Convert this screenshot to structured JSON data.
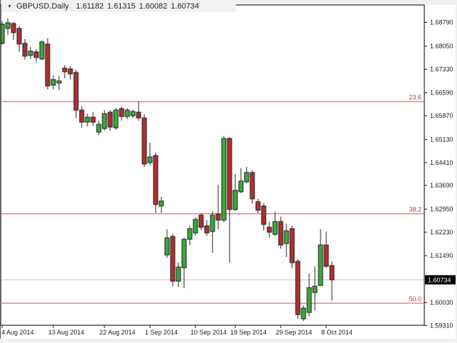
{
  "window": {
    "collapse_icon": "▼",
    "symbol_period": "GBPUSD,Daily",
    "ohlc": {
      "open": "1.61182",
      "high": "1.61315",
      "low": "1.60082",
      "close": "1.60734"
    }
  },
  "colors": {
    "up_fill": "#3aa83a",
    "down_fill": "#b03030",
    "outline": "#202020",
    "wick": "#202020",
    "fib_line": "#d84848",
    "fib_label": "#cc3333",
    "current_price_line": "#c0c0c0",
    "axis_text": "#1a1a1a",
    "plot_bg": "#ffffff",
    "frame": "#000000",
    "window_bg": "#f0f0f0",
    "badge_bg": "#000000",
    "badge_text": "#ffffff"
  },
  "chart_data": {
    "type": "candlestick",
    "title": "GBPUSD, Daily",
    "symbol": "GBPUSD",
    "timeframe": "Daily",
    "grid": false,
    "legend": false,
    "current_price": "1.60734",
    "y_axis": {
      "side": "right",
      "visible_range": [
        1.592,
        1.6895
      ],
      "tick_labels": [
        "1.68790",
        "1.68050",
        "1.67330",
        "1.66590",
        "1.65870",
        "1.65130",
        "1.64410",
        "1.63690",
        "1.62950",
        "1.62230",
        "1.61490",
        "1.60030",
        "1.59310"
      ]
    },
    "x_axis": {
      "side": "bottom",
      "date_ticks": [
        {
          "label": "4 Aug 2014",
          "bar": 0
        },
        {
          "label": "13 Aug 2014",
          "bar": 9
        },
        {
          "label": "22 Aug 2014",
          "bar": 18
        },
        {
          "label": "1 Sep 2014",
          "bar": 26
        },
        {
          "label": "10 Sep 2014",
          "bar": 34
        },
        {
          "label": "19 Sep 2014",
          "bar": 41
        },
        {
          "label": "29 Sep 2014",
          "bar": 49
        },
        {
          "label": "8 Oct 2014",
          "bar": 57
        }
      ]
    },
    "fib_levels": [
      {
        "label": "23.6",
        "price": 1.6632
      },
      {
        "label": "38.2",
        "price": 1.6281
      },
      {
        "label": "50.0",
        "price": 1.6001
      }
    ],
    "candle_format": [
      "open",
      "high",
      "low",
      "close"
    ],
    "candles": [
      [
        1.6814,
        1.6883,
        1.6809,
        1.6874
      ],
      [
        1.6861,
        1.6892,
        1.6841,
        1.6878
      ],
      [
        1.6876,
        1.6881,
        1.6825,
        1.6847
      ],
      [
        1.6861,
        1.6867,
        1.6787,
        1.6812
      ],
      [
        1.6814,
        1.6827,
        1.6763,
        1.6774
      ],
      [
        1.6776,
        1.6803,
        1.6765,
        1.6789
      ],
      [
        1.6787,
        1.6796,
        1.6754,
        1.6769
      ],
      [
        1.6765,
        1.6823,
        1.6761,
        1.6818
      ],
      [
        1.6812,
        1.6829,
        1.6669,
        1.6681
      ],
      [
        1.6683,
        1.6714,
        1.6669,
        1.67
      ],
      [
        1.6689,
        1.6712,
        1.6667,
        1.6696
      ],
      [
        1.6736,
        1.6745,
        1.6705,
        1.6725
      ],
      [
        1.6734,
        1.6743,
        1.67,
        1.6718
      ],
      [
        1.6723,
        1.6732,
        1.6581,
        1.6605
      ],
      [
        1.6605,
        1.6616,
        1.6549,
        1.6567
      ],
      [
        1.6567,
        1.6594,
        1.6554,
        1.6583
      ],
      [
        1.6583,
        1.6598,
        1.6556,
        1.6567
      ],
      [
        1.6536,
        1.6572,
        1.6527,
        1.6561
      ],
      [
        1.6547,
        1.6605,
        1.6541,
        1.6594
      ],
      [
        1.6598,
        1.6605,
        1.6541,
        1.6552
      ],
      [
        1.6549,
        1.6612,
        1.6543,
        1.6605
      ],
      [
        1.6609,
        1.6616,
        1.6572,
        1.6585
      ],
      [
        1.6585,
        1.6612,
        1.6576,
        1.6605
      ],
      [
        1.6587,
        1.6607,
        1.6581,
        1.6601
      ],
      [
        1.6598,
        1.6632,
        1.6572,
        1.6581
      ],
      [
        1.6581,
        1.6592,
        1.6427,
        1.6436
      ],
      [
        1.6441,
        1.6503,
        1.6434,
        1.6458
      ],
      [
        1.6463,
        1.6472,
        1.6283,
        1.6309
      ],
      [
        1.6305,
        1.6334,
        1.6283,
        1.6321
      ],
      [
        1.6152,
        1.6232,
        1.6143,
        1.6205
      ],
      [
        1.6209,
        1.6216,
        1.6054,
        1.6069
      ],
      [
        1.6069,
        1.6127,
        1.6052,
        1.6114
      ],
      [
        1.6112,
        1.6205,
        1.6047,
        1.6201
      ],
      [
        1.6201,
        1.6243,
        1.6183,
        1.6234
      ],
      [
        1.6221,
        1.6269,
        1.6212,
        1.6263
      ],
      [
        1.6276,
        1.6283,
        1.6229,
        1.6238
      ],
      [
        1.6243,
        1.6261,
        1.6212,
        1.6221
      ],
      [
        1.6225,
        1.6287,
        1.6158,
        1.6276
      ],
      [
        1.6281,
        1.6372,
        1.6232,
        1.6261
      ],
      [
        1.6261,
        1.6523,
        1.6254,
        1.6516
      ],
      [
        1.6516,
        1.6521,
        1.6127,
        1.6294
      ],
      [
        1.6294,
        1.6405,
        1.6289,
        1.6354
      ],
      [
        1.6349,
        1.6423,
        1.6345,
        1.6383
      ],
      [
        1.6381,
        1.6427,
        1.6376,
        1.6409
      ],
      [
        1.6409,
        1.6416,
        1.6312,
        1.6327
      ],
      [
        1.6318,
        1.6327,
        1.6283,
        1.6292
      ],
      [
        1.6305,
        1.6314,
        1.6227,
        1.6247
      ],
      [
        1.6238,
        1.6256,
        1.6205,
        1.6223
      ],
      [
        1.6216,
        1.6287,
        1.6212,
        1.6256
      ],
      [
        1.6256,
        1.6272,
        1.6172,
        1.6183
      ],
      [
        1.6187,
        1.6249,
        1.6145,
        1.6227
      ],
      [
        1.6234,
        1.6243,
        1.6109,
        1.6127
      ],
      [
        1.6132,
        1.6138,
        1.5952,
        1.5965
      ],
      [
        1.5952,
        1.5994,
        1.5945,
        1.5985
      ],
      [
        1.5972,
        1.6094,
        1.5961,
        1.6049
      ],
      [
        1.6034,
        1.6116,
        1.5978,
        1.6054
      ],
      [
        1.6056,
        1.6232,
        1.6055,
        1.6183
      ],
      [
        1.6183,
        1.6225,
        1.6112,
        1.6116
      ],
      [
        1.61182,
        1.61315,
        1.60082,
        1.60734
      ]
    ]
  }
}
